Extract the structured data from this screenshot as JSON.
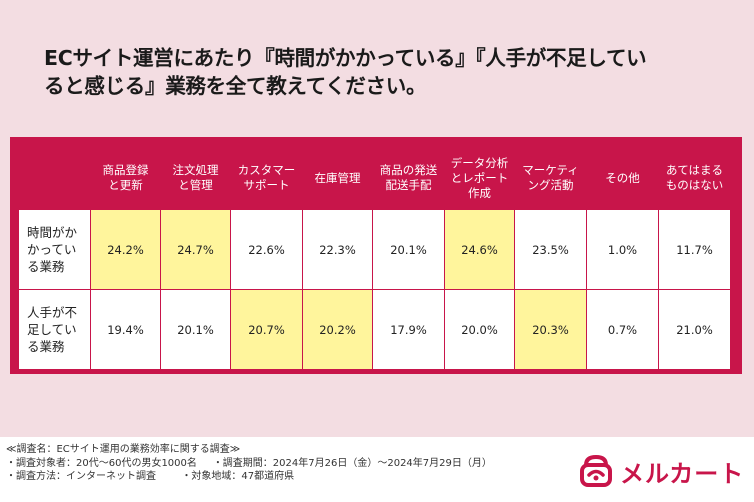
{
  "title": {
    "line1": "ECサイト運営にあたり『時間がかかっている』『人手が不足してい",
    "line2": "ると感じる』業務を全て教えてください。"
  },
  "chart_data": {
    "type": "table",
    "corner": "",
    "columns": [
      {
        "l1": "商品登録",
        "l2": "と更新",
        "l3": ""
      },
      {
        "l1": "注文処理",
        "l2": "と管理",
        "l3": ""
      },
      {
        "l1": "カスタマー",
        "l2": "サポート",
        "l3": ""
      },
      {
        "l1": "在庫管理",
        "l2": "",
        "l3": ""
      },
      {
        "l1": "商品の発送",
        "l2": "配送手配",
        "l3": ""
      },
      {
        "l1": "データ分析",
        "l2": "とレポート",
        "l3": "作成"
      },
      {
        "l1": "マーケティ",
        "l2": "ング活動",
        "l3": ""
      },
      {
        "l1": "その他",
        "l2": "",
        "l3": ""
      },
      {
        "l1": "あてはまる",
        "l2": "ものはない",
        "l3": ""
      }
    ],
    "rows": [
      {
        "l1": "時間がか",
        "l2": "かってい",
        "l3": "る業務",
        "cells": [
          {
            "v": "24.2%",
            "hl": true
          },
          {
            "v": "24.7%",
            "hl": true
          },
          {
            "v": "22.6%",
            "hl": false
          },
          {
            "v": "22.3%",
            "hl": false
          },
          {
            "v": "20.1%",
            "hl": false
          },
          {
            "v": "24.6%",
            "hl": true
          },
          {
            "v": "23.5%",
            "hl": false
          },
          {
            "v": "1.0%",
            "hl": false
          },
          {
            "v": "11.7%",
            "hl": false
          }
        ]
      },
      {
        "l1": "人手が不",
        "l2": "足してい",
        "l3": "る業務",
        "cells": [
          {
            "v": "19.4%",
            "hl": false
          },
          {
            "v": "20.1%",
            "hl": false
          },
          {
            "v": "20.7%",
            "hl": true
          },
          {
            "v": "20.2%",
            "hl": true
          },
          {
            "v": "17.9%",
            "hl": false
          },
          {
            "v": "20.0%",
            "hl": false
          },
          {
            "v": "20.3%",
            "hl": true
          },
          {
            "v": "0.7%",
            "hl": false
          },
          {
            "v": "21.0%",
            "hl": false
          }
        ]
      }
    ],
    "highlight_color": "#fff59c",
    "header_color": "#c8154a"
  },
  "footer": {
    "survey_name": "≪調査名：ECサイト運用の業務効率に関する調査≫",
    "target": "・調査対象者：20代〜60代の男女1000名",
    "period": "・調査期間：2024年7月26日（金）〜2024年7月29日（月）",
    "method": "・調査方法：インターネット調査",
    "region": "・対象地域：47都道府県"
  },
  "logo": {
    "text": "メルカート",
    "icon": "merucart-logo-icon",
    "color": "#c8154a"
  }
}
